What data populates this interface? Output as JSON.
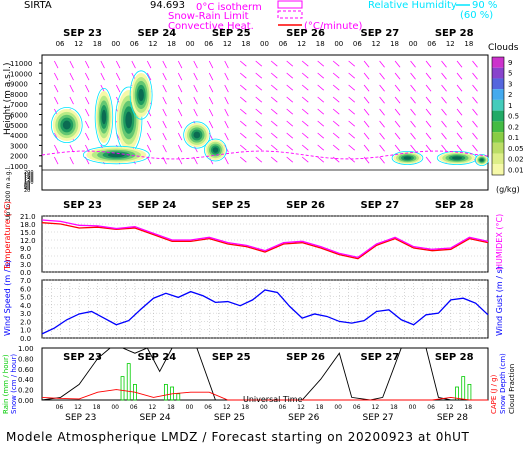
{
  "header": {
    "station": "SIRTA",
    "elevation": "94.693",
    "legend_iso0": "0°C isotherm",
    "legend_iso0_short": "0°C",
    "legend_snow_rain": "Snow-Rain Limit",
    "legend_convective": "Convective Heat.",
    "legend_convective_unit": "(°C/minute)",
    "legend_rh": "Relative Humidity",
    "rh_90": "90 %",
    "rh_60": "(60 %)"
  },
  "days": [
    "SEP 23",
    "SEP 24",
    "SEP 25",
    "SEP 26",
    "SEP 27",
    "SEP 28"
  ],
  "hour_ticks": [
    "06",
    "12",
    "18",
    "00",
    "06",
    "12",
    "18",
    "00",
    "06",
    "12",
    "18",
    "00",
    "06",
    "12",
    "18",
    "00",
    "06",
    "12",
    "18",
    "00",
    "06",
    "12",
    "18"
  ],
  "x_title": "Universal Time",
  "colors": {
    "isotherm": "#ff00ff",
    "temperature": "#ff0000",
    "humidex": "#ff00ff",
    "wind": "#0000ff",
    "rain": "#00cc00",
    "snow": "#0000ff",
    "cape": "#ff0000",
    "cloud_fraction": "#000000",
    "rh": "#00e5ff"
  },
  "panels": {
    "cloud": {
      "ylabel": "Height (m a.s.l.)",
      "ylabel_low": "Up to 200 m a.g.l.",
      "yticks_high": [
        "11000",
        "10000",
        "9000",
        "8000",
        "7000",
        "6000",
        "5000",
        "4000",
        "3000",
        "2000",
        "1000"
      ],
      "yticks_low": [
        "200",
        "180",
        "160",
        "140",
        "120",
        "100",
        "80",
        "60",
        "40",
        "20"
      ],
      "colorbar_title": "Clouds",
      "colorbar_ticks": [
        "9",
        "5",
        "3",
        "2",
        "1",
        "0.5",
        "0.2",
        "0.1",
        "0.05",
        "0.02",
        "0.01"
      ],
      "colorbar_unit": "(g/kg)"
    },
    "temperature": {
      "ylabel_left": "Temperature (°C)",
      "ylabel_right": "HUMIDEX (°C)",
      "yticks": [
        "21.0",
        "18.0",
        "15.0",
        "12.0",
        "9.0",
        "6.0",
        "3.0",
        "0.0"
      ]
    },
    "wind": {
      "ylabel_left": "Wind Speed (m / s)",
      "ylabel_right": "Wind Gust (m / s)",
      "yticks": [
        "7.0",
        "6.0",
        "5.0",
        "4.0",
        "3.0",
        "2.0",
        "1.0",
        "0.0"
      ]
    },
    "precip": {
      "ylabel_left_rain": "Rain (mm / hour)",
      "ylabel_left_snow": "Snow (cm / hour)",
      "ylabel_right_cape": "CAPE (J / g)",
      "ylabel_right_snowdepth": "Snow Depth (cm)",
      "ylabel_right_cloud": "Cloud Fraction",
      "yticks": [
        "1.00",
        "0.80",
        "0.60",
        "0.40",
        "0.20",
        "0.00"
      ]
    }
  },
  "chart_data": [
    {
      "type": "line",
      "name": "temperature-panel",
      "x_unit": "hours from 2020-09-23 00UT",
      "series": [
        {
          "name": "Temperature",
          "x": [
            0,
            6,
            12,
            18,
            24,
            30,
            36,
            42,
            48,
            54,
            60,
            66,
            72,
            78,
            84,
            90,
            96,
            102,
            108,
            114,
            120,
            126,
            132,
            138,
            144
          ],
          "y": [
            18.5,
            18,
            16.5,
            16.8,
            16,
            16.5,
            14,
            11.5,
            11.5,
            12.5,
            10.5,
            9.5,
            7.5,
            10.5,
            11,
            9,
            6.5,
            5,
            10,
            12.5,
            9,
            8,
            8.5,
            12.5,
            11
          ]
        },
        {
          "name": "HUMIDEX",
          "x": [
            0,
            6,
            12,
            18,
            24,
            30,
            36,
            42,
            48,
            54,
            60,
            66,
            72,
            78,
            84,
            90,
            96,
            102,
            108,
            114,
            120,
            126,
            132,
            138,
            144
          ],
          "y": [
            19.5,
            19,
            17.5,
            17.3,
            16.3,
            17,
            14.5,
            12,
            12,
            13,
            11,
            10,
            8,
            11,
            11.5,
            9.5,
            7,
            5.5,
            10.5,
            13,
            9.5,
            8.5,
            9,
            13,
            11.5
          ]
        }
      ],
      "ylim": [
        0,
        21
      ]
    },
    {
      "type": "line",
      "name": "wind-panel",
      "x_unit": "hours from 2020-09-23 00UT",
      "series": [
        {
          "name": "Wind Speed",
          "x": [
            0,
            4,
            8,
            12,
            16,
            20,
            24,
            28,
            32,
            36,
            40,
            44,
            48,
            52,
            56,
            60,
            64,
            68,
            72,
            76,
            80,
            84,
            88,
            92,
            96,
            100,
            104,
            108,
            112,
            116,
            120,
            124,
            128,
            132,
            136,
            140,
            144
          ],
          "y": [
            0.5,
            1.2,
            2.2,
            2.9,
            3.2,
            2.4,
            1.6,
            2.1,
            3.5,
            4.8,
            5.4,
            4.9,
            5.6,
            5.1,
            4.3,
            4.4,
            3.9,
            4.6,
            5.8,
            5.5,
            3.8,
            2.4,
            2.9,
            2.6,
            2.0,
            1.8,
            2.1,
            3.2,
            3.4,
            2.2,
            1.6,
            2.8,
            3.0,
            4.6,
            4.8,
            4.2,
            2.8
          ]
        }
      ],
      "ylim": [
        0,
        7
      ]
    },
    {
      "type": "bar",
      "name": "precip-panel",
      "x_unit": "hours from 2020-09-23 00UT",
      "series": [
        {
          "name": "Rain",
          "x": [
            26,
            28,
            30,
            40,
            42,
            44,
            134,
            136,
            138
          ],
          "y": [
            0.45,
            0.7,
            0.3,
            0.3,
            0.25,
            0.12,
            0.25,
            0.45,
            0.3
          ]
        },
        {
          "name": "Cloud Fraction",
          "x": [
            0,
            6,
            12,
            18,
            22,
            26,
            30,
            34,
            38,
            42,
            46,
            50,
            56,
            60,
            64,
            70,
            74,
            78,
            84,
            90,
            96,
            100,
            106,
            110,
            116,
            120,
            124,
            128,
            132,
            138,
            144
          ],
          "y": [
            0.0,
            0.05,
            0.3,
            0.8,
            1.0,
            1.0,
            0.9,
            1.0,
            0.55,
            1.0,
            1.0,
            1.0,
            0.0,
            0.0,
            0.0,
            0.0,
            0.0,
            0.0,
            0.0,
            0.4,
            0.9,
            0.05,
            0.0,
            0.05,
            1.0,
            1.0,
            1.0,
            0.05,
            0.0,
            0.0,
            0.0
          ]
        },
        {
          "name": "CAPE",
          "x": [
            0,
            6,
            12,
            18,
            24,
            30,
            36,
            42,
            48,
            54,
            60,
            66,
            72,
            78,
            84,
            90,
            96,
            102,
            108,
            114,
            120,
            126,
            132,
            138,
            144
          ],
          "y": [
            0.05,
            0.03,
            0.02,
            0.15,
            0.2,
            0.15,
            0.05,
            0.12,
            0.15,
            0.15,
            0.0,
            0.0,
            0.0,
            0.0,
            0.0,
            0.0,
            0.0,
            0.0,
            0.0,
            0.0,
            0.0,
            0.0,
            0.05,
            0.0,
            0.0
          ]
        }
      ],
      "ylim": [
        0,
        1
      ]
    }
  ],
  "footer": "Modele Atmospherique LMDZ / Forecast starting on 20200923 at 0hUT"
}
